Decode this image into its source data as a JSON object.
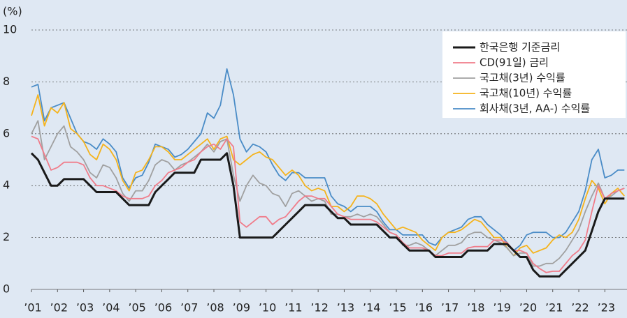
{
  "chart_data": {
    "type": "line",
    "y_label": "(%)",
    "x": [
      2001,
      2001.25,
      2001.5,
      2001.75,
      2002,
      2002.25,
      2002.5,
      2002.75,
      2003,
      2003.25,
      2003.5,
      2003.75,
      2004,
      2004.25,
      2004.5,
      2004.75,
      2005,
      2005.25,
      2005.5,
      2005.75,
      2006,
      2006.25,
      2006.5,
      2006.75,
      2007,
      2007.25,
      2007.5,
      2007.75,
      2008,
      2008.25,
      2008.5,
      2008.75,
      2009,
      2009.25,
      2009.5,
      2009.75,
      2010,
      2010.25,
      2010.5,
      2010.75,
      2011,
      2011.25,
      2011.5,
      2011.75,
      2012,
      2012.25,
      2012.5,
      2012.75,
      2013,
      2013.25,
      2013.5,
      2013.75,
      2014,
      2014.25,
      2014.5,
      2014.75,
      2015,
      2015.25,
      2015.5,
      2015.75,
      2016,
      2016.25,
      2016.5,
      2016.75,
      2017,
      2017.25,
      2017.5,
      2017.75,
      2018,
      2018.25,
      2018.5,
      2018.75,
      2019,
      2019.25,
      2019.5,
      2019.75,
      2020,
      2020.25,
      2020.5,
      2020.75,
      2021,
      2021.25,
      2021.5,
      2021.75,
      2022,
      2022.25,
      2022.5,
      2022.75,
      2023,
      2023.25,
      2023.5,
      2023.75
    ],
    "series": [
      {
        "name": "한국은행 기준금리",
        "color": "#1a1a1a",
        "width": 3,
        "values": [
          5.25,
          5.0,
          4.5,
          4.0,
          4.0,
          4.25,
          4.25,
          4.25,
          4.25,
          4.0,
          3.75,
          3.75,
          3.75,
          3.75,
          3.5,
          3.25,
          3.25,
          3.25,
          3.25,
          3.75,
          4.0,
          4.25,
          4.5,
          4.5,
          4.5,
          4.5,
          5.0,
          5.0,
          5.0,
          5.0,
          5.25,
          4.0,
          2.0,
          2.0,
          2.0,
          2.0,
          2.0,
          2.0,
          2.25,
          2.5,
          2.75,
          3.0,
          3.25,
          3.25,
          3.25,
          3.25,
          3.0,
          2.75,
          2.75,
          2.5,
          2.5,
          2.5,
          2.5,
          2.5,
          2.25,
          2.0,
          2.0,
          1.75,
          1.5,
          1.5,
          1.5,
          1.5,
          1.25,
          1.25,
          1.25,
          1.25,
          1.25,
          1.5,
          1.5,
          1.5,
          1.5,
          1.75,
          1.75,
          1.75,
          1.5,
          1.25,
          1.25,
          0.75,
          0.5,
          0.5,
          0.5,
          0.5,
          0.75,
          1.0,
          1.25,
          1.5,
          2.25,
          3.0,
          3.5,
          3.5,
          3.5,
          3.5
        ]
      },
      {
        "name": "CD(91일) 금리",
        "color": "#f07c8a",
        "width": 1.8,
        "values": [
          5.9,
          5.8,
          5.2,
          4.6,
          4.7,
          4.9,
          4.9,
          4.9,
          4.8,
          4.3,
          4.0,
          4.0,
          3.9,
          3.8,
          3.6,
          3.5,
          3.5,
          3.5,
          3.6,
          4.0,
          4.2,
          4.5,
          4.6,
          4.7,
          4.9,
          5.0,
          5.3,
          5.5,
          5.6,
          5.4,
          5.8,
          5.5,
          2.6,
          2.4,
          2.6,
          2.8,
          2.8,
          2.5,
          2.7,
          2.8,
          3.1,
          3.4,
          3.6,
          3.6,
          3.5,
          3.5,
          3.2,
          2.9,
          2.8,
          2.7,
          2.7,
          2.7,
          2.7,
          2.6,
          2.4,
          2.2,
          2.1,
          1.8,
          1.6,
          1.6,
          1.6,
          1.5,
          1.3,
          1.3,
          1.4,
          1.4,
          1.4,
          1.6,
          1.65,
          1.65,
          1.65,
          1.9,
          1.9,
          1.8,
          1.5,
          1.5,
          1.4,
          1.0,
          0.8,
          0.65,
          0.7,
          0.7,
          1.0,
          1.3,
          1.5,
          1.9,
          3.0,
          4.0,
          3.5,
          3.7,
          3.8,
          3.9
        ]
      },
      {
        "name": "국고채(3년) 수익률",
        "color": "#a0a0a0",
        "width": 1.8,
        "values": [
          6.0,
          6.5,
          5.0,
          5.5,
          6.0,
          6.3,
          5.5,
          5.3,
          5.0,
          4.5,
          4.3,
          4.8,
          4.7,
          4.3,
          3.7,
          3.4,
          3.8,
          3.8,
          4.2,
          4.8,
          5.0,
          4.9,
          4.6,
          4.8,
          4.9,
          5.1,
          5.3,
          5.6,
          5.3,
          5.7,
          5.8,
          4.4,
          3.4,
          4.0,
          4.4,
          4.1,
          4.0,
          3.7,
          3.6,
          3.2,
          3.7,
          3.8,
          3.6,
          3.4,
          3.5,
          3.4,
          2.9,
          2.9,
          2.8,
          2.8,
          2.9,
          2.8,
          2.9,
          2.8,
          2.5,
          2.2,
          2.1,
          1.7,
          1.7,
          1.8,
          1.7,
          1.5,
          1.3,
          1.5,
          1.7,
          1.7,
          1.8,
          2.1,
          2.2,
          2.2,
          2.0,
          1.9,
          1.8,
          1.6,
          1.3,
          1.4,
          1.4,
          0.9,
          0.9,
          1.0,
          1.0,
          1.2,
          1.5,
          1.9,
          2.3,
          3.0,
          3.6,
          4.1,
          3.5,
          3.6,
          3.8,
          3.9
        ]
      },
      {
        "name": "국고채(10년) 수익률",
        "color": "#f5b31c",
        "width": 1.8,
        "values": [
          6.7,
          7.5,
          6.3,
          7.0,
          6.8,
          7.2,
          6.2,
          6.0,
          5.7,
          5.2,
          5.0,
          5.6,
          5.4,
          5.0,
          4.2,
          3.8,
          4.5,
          4.6,
          5.0,
          5.5,
          5.5,
          5.3,
          5.0,
          5.0,
          5.2,
          5.4,
          5.6,
          5.8,
          5.4,
          5.8,
          5.9,
          5.0,
          4.8,
          5.0,
          5.2,
          5.3,
          5.1,
          5.0,
          4.7,
          4.4,
          4.6,
          4.4,
          4.0,
          3.8,
          3.9,
          3.8,
          3.2,
          3.2,
          3.0,
          3.2,
          3.6,
          3.6,
          3.5,
          3.3,
          2.9,
          2.6,
          2.3,
          2.4,
          2.3,
          2.2,
          1.9,
          1.7,
          1.5,
          2.0,
          2.2,
          2.2,
          2.3,
          2.5,
          2.7,
          2.6,
          2.3,
          2.0,
          2.0,
          1.6,
          1.3,
          1.6,
          1.7,
          1.4,
          1.5,
          1.6,
          1.9,
          2.1,
          2.0,
          2.2,
          2.7,
          3.5,
          4.2,
          3.9,
          3.3,
          3.7,
          3.9,
          3.6
        ]
      },
      {
        "name": "회사채(3년, AA-) 수익률",
        "color": "#4a8cc7",
        "width": 1.8,
        "values": [
          7.8,
          7.9,
          6.5,
          7.0,
          7.1,
          7.2,
          6.6,
          6.0,
          5.7,
          5.6,
          5.4,
          5.8,
          5.6,
          5.3,
          4.3,
          3.9,
          4.3,
          4.4,
          4.9,
          5.6,
          5.5,
          5.4,
          5.1,
          5.2,
          5.4,
          5.7,
          6.0,
          6.8,
          6.6,
          7.1,
          8.5,
          7.5,
          5.8,
          5.3,
          5.6,
          5.5,
          5.3,
          4.8,
          4.4,
          4.2,
          4.5,
          4.5,
          4.3,
          4.3,
          4.3,
          4.3,
          3.6,
          3.3,
          3.2,
          3.0,
          3.2,
          3.2,
          3.2,
          3.0,
          2.6,
          2.3,
          2.3,
          2.1,
          2.1,
          2.1,
          2.1,
          1.8,
          1.7,
          2.0,
          2.2,
          2.3,
          2.4,
          2.7,
          2.8,
          2.8,
          2.5,
          2.3,
          2.1,
          1.8,
          1.5,
          1.7,
          2.1,
          2.2,
          2.2,
          2.2,
          2.0,
          2.0,
          2.2,
          2.6,
          3.0,
          3.8,
          5.0,
          5.4,
          4.3,
          4.4,
          4.6,
          4.6
        ]
      }
    ],
    "xlim": [
      2001,
      2023.85
    ],
    "xticks": [
      {
        "value": 2001,
        "label": "’01"
      },
      {
        "value": 2002,
        "label": "’02"
      },
      {
        "value": 2003,
        "label": "’03"
      },
      {
        "value": 2004,
        "label": "’04"
      },
      {
        "value": 2005,
        "label": "’05"
      },
      {
        "value": 2006,
        "label": "’06"
      },
      {
        "value": 2007,
        "label": "’07"
      },
      {
        "value": 2008,
        "label": "’08"
      },
      {
        "value": 2009,
        "label": "’09"
      },
      {
        "value": 2010,
        "label": "’10"
      },
      {
        "value": 2011,
        "label": "’11"
      },
      {
        "value": 2012,
        "label": "’12"
      },
      {
        "value": 2013,
        "label": "’13"
      },
      {
        "value": 2014,
        "label": "’14"
      },
      {
        "value": 2015,
        "label": "’15"
      },
      {
        "value": 2016,
        "label": "’16"
      },
      {
        "value": 2017,
        "label": "’17"
      },
      {
        "value": 2018,
        "label": "’18"
      },
      {
        "value": 2019,
        "label": "’19"
      },
      {
        "value": 2020,
        "label": "’20"
      },
      {
        "value": 2021,
        "label": "’21"
      },
      {
        "value": 2022,
        "label": "’22"
      },
      {
        "value": 2023,
        "label": "’23"
      }
    ],
    "ylim": [
      0,
      10
    ],
    "yticks": [
      0,
      2,
      4,
      6,
      8,
      10
    ],
    "grid": true,
    "legend": "top-right"
  }
}
